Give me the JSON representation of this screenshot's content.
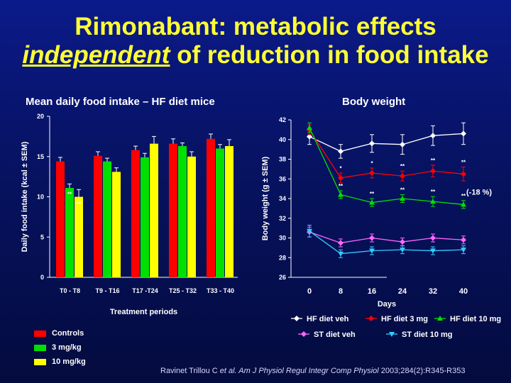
{
  "title_line1": "Rimonabant: metabolic effects",
  "title_line2_emph": "independent",
  "title_line2_rest": " of reduction in food intake",
  "citation": {
    "authors": "Ravinet Trillou C ",
    "etal": "et al. Am J Physiol Regul Integr Comp Physiol ",
    "ref": "2003;284(2):R345-R353"
  },
  "colors": {
    "title": "#ffff33",
    "red": "#ff0000",
    "green": "#00e000",
    "yellow": "#ffff00",
    "white": "#ffffff",
    "magenta": "#ff66ff",
    "cyan": "#33ccff"
  },
  "chart_data": [
    {
      "type": "bar",
      "title": "Mean daily food intake – HF diet mice",
      "xlabel": "Treatment periods",
      "ylabel": "Daily food intake (kcal ± SEM)",
      "ylim": [
        0,
        20
      ],
      "yticks": [
        "0",
        "5",
        "10",
        "15",
        "20"
      ],
      "categories": [
        "T0 - T8",
        "T9 - T16",
        "T17 -T24",
        "T25 - T32",
        "T33 - T40"
      ],
      "series": [
        {
          "name": "Controls",
          "color": "#ff0000",
          "values": [
            14.4,
            15.1,
            15.8,
            16.6,
            17.2
          ],
          "err": [
            0.5,
            0.5,
            0.5,
            0.6,
            0.6
          ],
          "sig": [
            "",
            "",
            "",
            "",
            ""
          ]
        },
        {
          "name": "3 mg/kg",
          "color": "#00e000",
          "values": [
            11.1,
            14.4,
            14.9,
            16.3,
            16.0
          ],
          "err": [
            0.5,
            0.4,
            0.5,
            0.4,
            0.5
          ],
          "sig": [
            "**",
            "",
            "",
            "",
            ""
          ]
        },
        {
          "name": "10 mg/kg",
          "color": "#ffff00",
          "values": [
            10.0,
            13.1,
            16.6,
            15.0,
            16.3
          ],
          "err": [
            0.9,
            0.5,
            0.9,
            0.6,
            0.8
          ],
          "sig": [
            "**",
            "",
            "",
            "",
            ""
          ]
        }
      ],
      "legend_position": "bottom-left",
      "grid": false
    },
    {
      "type": "line",
      "title": "Body weight",
      "xlabel": "Days",
      "ylabel": "Body weight (g ± SEM)",
      "x": [
        0,
        8,
        16,
        24,
        32,
        40
      ],
      "xticks": [
        "0",
        "8",
        "16",
        "24",
        "32",
        "40"
      ],
      "ylim": [
        26,
        42
      ],
      "yticks": [
        "26",
        "28",
        "30",
        "32",
        "34",
        "36",
        "38",
        "40",
        "42"
      ],
      "annotation": "(-18 %)",
      "series": [
        {
          "name": "HF diet veh",
          "color": "#ffffff",
          "marker": "diamond",
          "values": [
            40.3,
            38.8,
            39.6,
            39.5,
            40.4,
            40.6
          ],
          "err": [
            0.8,
            0.7,
            0.9,
            1.0,
            1.0,
            1.1
          ],
          "sig": [
            "",
            "",
            "",
            "",
            "",
            ""
          ]
        },
        {
          "name": "HF diet 3 mg",
          "color": "#ff0000",
          "marker": "diamond",
          "values": [
            41.0,
            36.1,
            36.6,
            36.3,
            36.8,
            36.5
          ],
          "err": [
            0.5,
            0.5,
            0.5,
            0.5,
            0.6,
            0.7
          ],
          "sig": [
            "",
            "*",
            "*",
            "**",
            "**",
            "**"
          ]
        },
        {
          "name": "HF diet 10 mg",
          "color": "#00e000",
          "marker": "triangle",
          "values": [
            41.2,
            34.4,
            33.6,
            34.0,
            33.7,
            33.4
          ],
          "err": [
            0.5,
            0.4,
            0.4,
            0.4,
            0.5,
            0.4
          ],
          "sig": [
            "",
            "**",
            "**",
            "**",
            "**",
            "**"
          ]
        },
        {
          "name": "ST diet veh",
          "color": "#ff66ff",
          "marker": "diamond",
          "values": [
            30.6,
            29.5,
            30.0,
            29.6,
            30.0,
            29.8
          ],
          "err": [
            0.5,
            0.4,
            0.4,
            0.4,
            0.4,
            0.4
          ],
          "sig": [
            "",
            "",
            "",
            "",
            "",
            ""
          ]
        },
        {
          "name": "ST diet 10 mg",
          "color": "#33ccff",
          "marker": "triangle-down",
          "values": [
            30.7,
            28.4,
            28.7,
            28.8,
            28.7,
            28.8
          ],
          "err": [
            0.6,
            0.4,
            0.4,
            0.4,
            0.4,
            0.4
          ],
          "sig": [
            "",
            "",
            "",
            "",
            "",
            ""
          ]
        }
      ],
      "legend_position": "bottom",
      "grid": false
    }
  ]
}
